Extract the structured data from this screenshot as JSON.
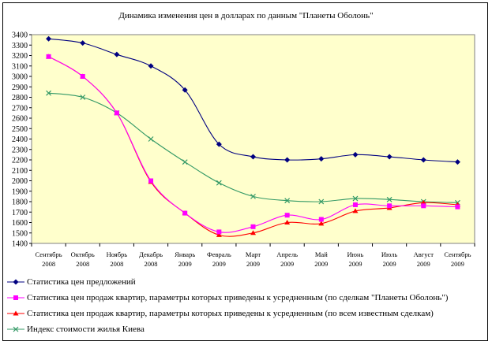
{
  "chart_data": {
    "type": "line",
    "title": "Динамика изменения цен в долларах по данным \"Планеты Оболонь\"",
    "categories": [
      [
        "Сентябрь",
        "2008"
      ],
      [
        "Октябрь",
        "2008"
      ],
      [
        "Ноябрь",
        "2008"
      ],
      [
        "Декабрь",
        "2008"
      ],
      [
        "Январь",
        "2009"
      ],
      [
        "Февраль",
        "2009"
      ],
      [
        "Март",
        "2009"
      ],
      [
        "Апрель",
        "2009"
      ],
      [
        "Май",
        "2009"
      ],
      [
        "Июнь",
        "2009"
      ],
      [
        "Июль",
        "2009"
      ],
      [
        "Август",
        "2009"
      ],
      [
        "Сентябрь",
        "2009"
      ]
    ],
    "ylim": [
      1400,
      3400
    ],
    "ystep": 100,
    "grid": false,
    "plot_background": "#ffffcc",
    "legend_position": "bottom",
    "series": [
      {
        "name": "Статистика цен  предложений",
        "color": "#000080",
        "marker": "diamond",
        "values": [
          3360,
          3320,
          3210,
          3100,
          2870,
          2350,
          2230,
          2200,
          2210,
          2250,
          2230,
          2200,
          2180
        ]
      },
      {
        "name": "Статистика цен продаж квартир, параметры которых приведены к усредненным (по сделкам \"Планеты Оболонь\")",
        "color": "#ff00ff",
        "marker": "square",
        "values": [
          3190,
          3000,
          2650,
          2000,
          1690,
          1510,
          1560,
          1670,
          1630,
          1770,
          1760,
          1760,
          1750
        ]
      },
      {
        "name": "Статистика цен продаж квартир, параметры которых приведены к усредненным (по всем известным сделкам)",
        "color": "#ff0000",
        "marker": "triangle",
        "values": [
          3190,
          3000,
          2650,
          1990,
          1690,
          1480,
          1500,
          1600,
          1590,
          1710,
          1740,
          1790,
          1770
        ]
      },
      {
        "name": "Индекс стоимости жилья Киева",
        "color": "#339966",
        "marker": "x",
        "values": [
          2840,
          2800,
          2650,
          2400,
          2180,
          1980,
          1850,
          1810,
          1800,
          1830,
          1820,
          1800,
          1790
        ]
      }
    ]
  }
}
